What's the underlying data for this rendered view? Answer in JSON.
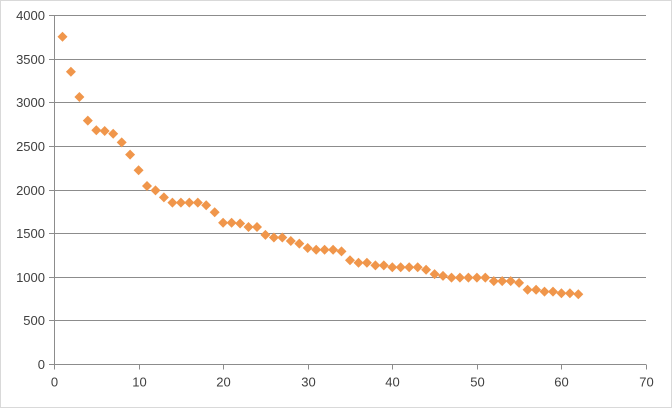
{
  "chart_data": {
    "type": "scatter",
    "marker": "diamond",
    "marker_color": "#f0964b",
    "title": "",
    "xlabel": "",
    "ylabel": "",
    "xlim": [
      0,
      70
    ],
    "ylim": [
      0,
      4000
    ],
    "x_ticks": [
      0,
      10,
      20,
      30,
      40,
      50,
      60,
      70
    ],
    "y_ticks": [
      0,
      500,
      1000,
      1500,
      2000,
      2500,
      3000,
      3500,
      4000
    ],
    "grid": "horizontal",
    "legend": "none",
    "series": [
      {
        "x": [
          1,
          2,
          3,
          4,
          5,
          6,
          7,
          8,
          9,
          10,
          11,
          12,
          13,
          14,
          15,
          16,
          17,
          18,
          19,
          20,
          21,
          22,
          23,
          24,
          25,
          26,
          27,
          28,
          29,
          30,
          31,
          32,
          33,
          34,
          35,
          36,
          37,
          38,
          39,
          40,
          41,
          42,
          43,
          44,
          45,
          46,
          47,
          48,
          49,
          50,
          51,
          52,
          53,
          54,
          55,
          56,
          57,
          58,
          59,
          60,
          61,
          62
        ],
        "y": [
          3750,
          3350,
          3060,
          2790,
          2680,
          2670,
          2640,
          2540,
          2400,
          2220,
          2040,
          1990,
          1910,
          1850,
          1850,
          1850,
          1850,
          1820,
          1740,
          1620,
          1620,
          1610,
          1570,
          1570,
          1480,
          1450,
          1450,
          1410,
          1380,
          1330,
          1310,
          1310,
          1310,
          1290,
          1190,
          1160,
          1160,
          1130,
          1130,
          1110,
          1110,
          1110,
          1110,
          1080,
          1030,
          1010,
          990,
          990,
          990,
          990,
          990,
          950,
          950,
          950,
          930,
          850,
          850,
          830,
          830,
          810,
          810,
          800
        ]
      }
    ]
  }
}
